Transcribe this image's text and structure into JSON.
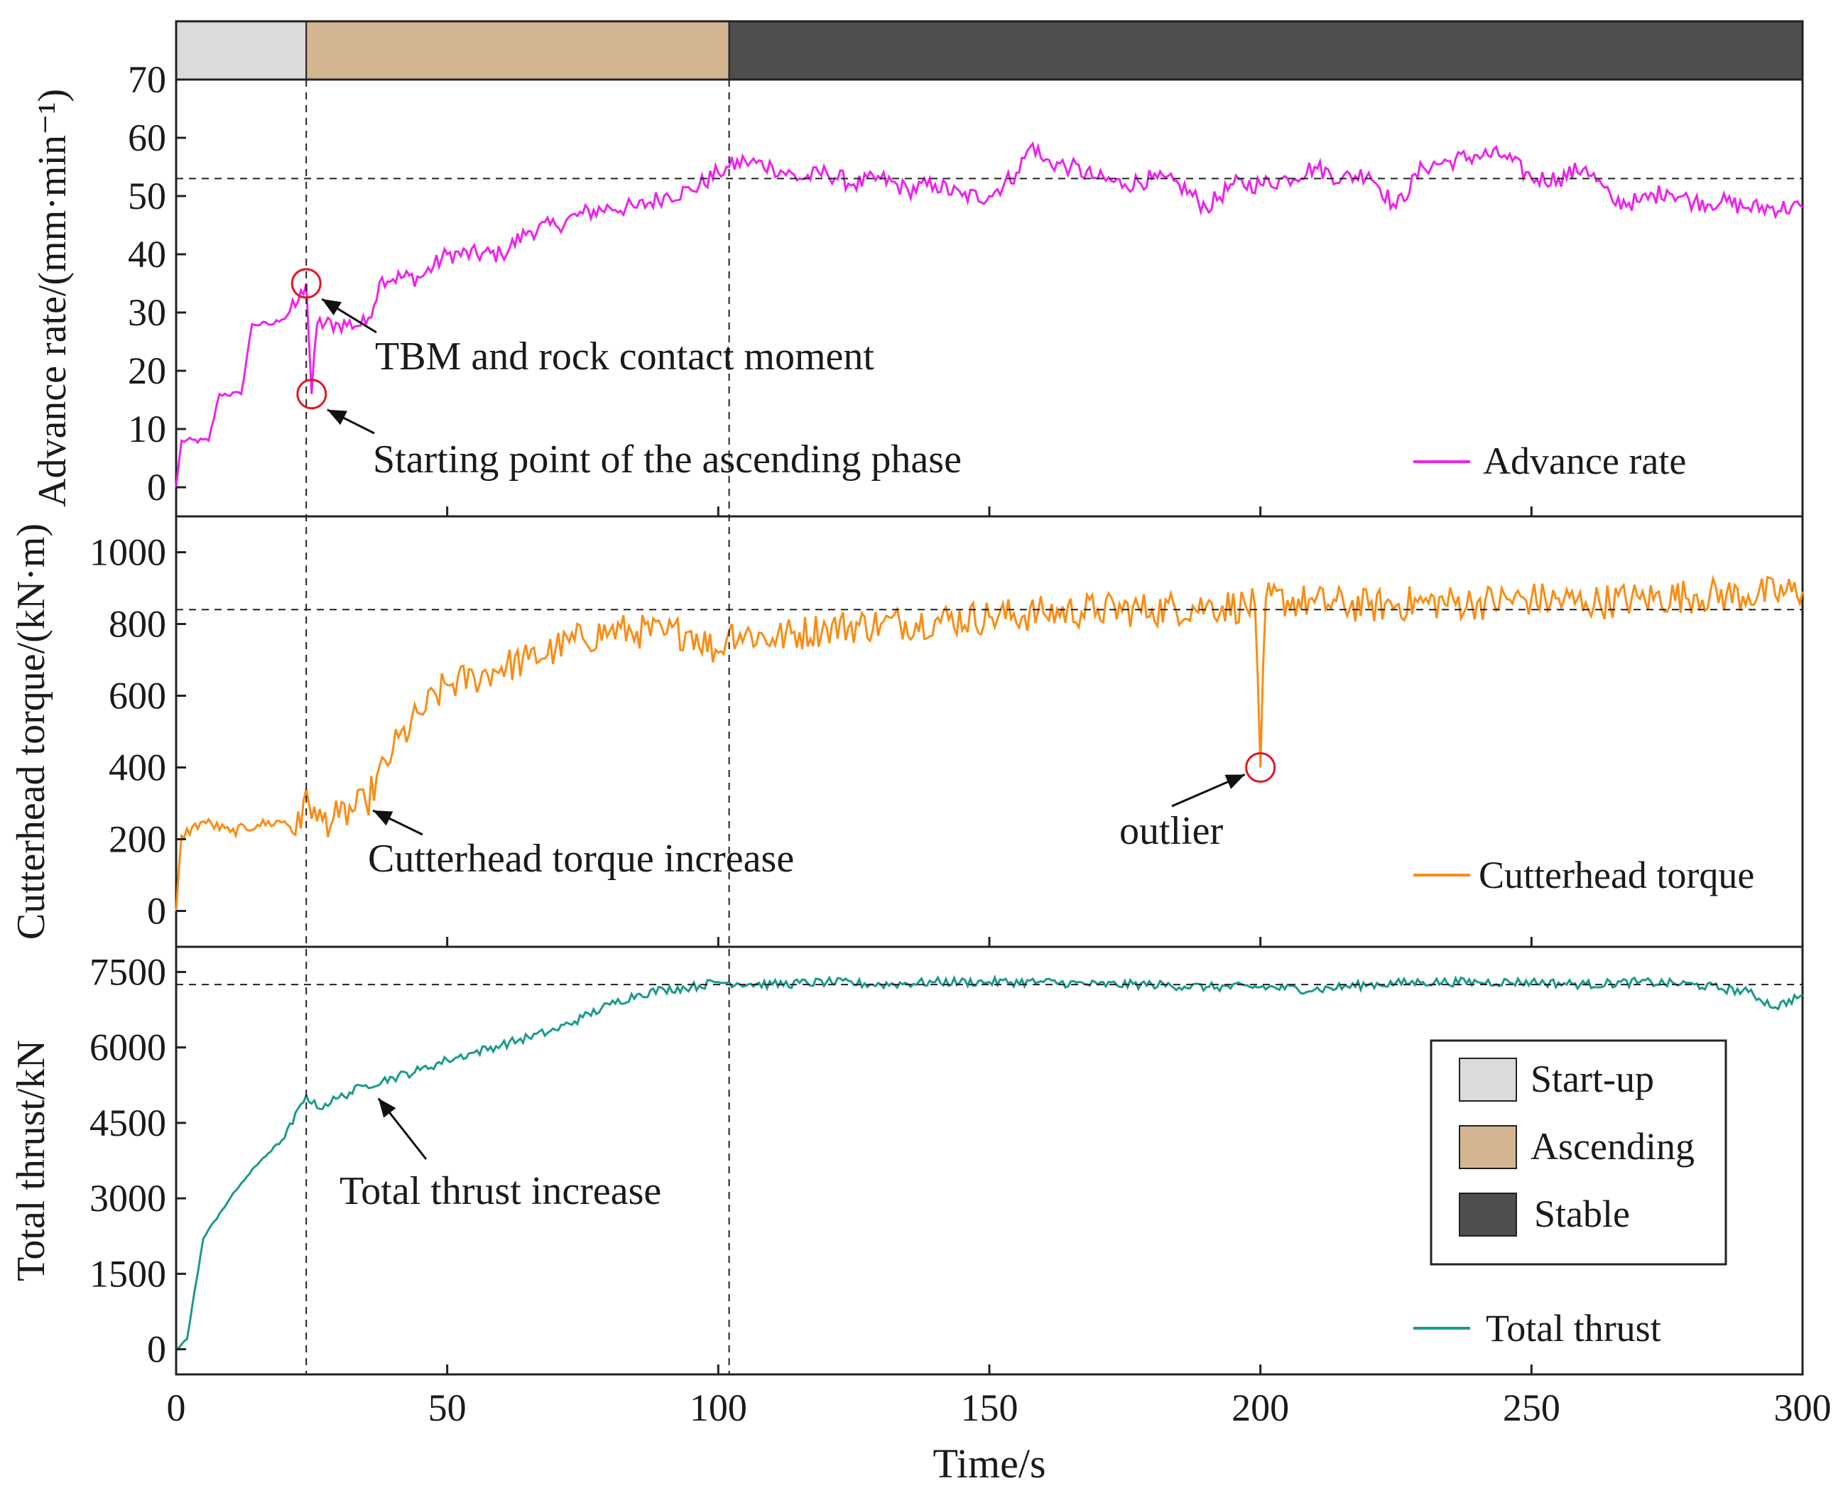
{
  "chart_data": {
    "type": "line",
    "xlabel": "Time/s",
    "xlim": [
      0,
      300
    ],
    "xticks": [
      "0",
      "50",
      "100",
      "150",
      "200",
      "250",
      "300"
    ],
    "phases": [
      {
        "name": "Start-up",
        "start": 0,
        "end": 24,
        "color": "#dcdadb"
      },
      {
        "name": "Ascending",
        "start": 24,
        "end": 102,
        "color": "#d4b592"
      },
      {
        "name": "Stable",
        "start": 102,
        "end": 300,
        "color": "#4e4e4e"
      }
    ],
    "phase_boundaries": [
      24,
      102
    ],
    "legend_phase": [
      "Start-up",
      "Ascending",
      "Stable"
    ],
    "panels": [
      {
        "id": "advance",
        "ylabel": "Advance rate/(mm·min⁻¹)",
        "ylim": [
          -5,
          70
        ],
        "yticks": [
          "0",
          "10",
          "20",
          "30",
          "40",
          "50",
          "60",
          "70"
        ],
        "series_name": "Advance rate",
        "color": "#ee22ee",
        "stable_mean": 53,
        "annotations": [
          {
            "text": "TBM and rock contact moment",
            "target": [
              24,
              35
            ]
          },
          {
            "text": "Starting point of the ascending phase",
            "target": [
              25,
              16
            ]
          }
        ],
        "keypoints": [
          [
            0,
            0
          ],
          [
            1,
            8
          ],
          [
            6,
            8
          ],
          [
            8,
            16
          ],
          [
            12,
            16
          ],
          [
            14,
            28
          ],
          [
            18,
            28
          ],
          [
            22,
            31
          ],
          [
            24,
            35
          ],
          [
            25,
            16
          ],
          [
            26,
            28
          ],
          [
            30,
            28
          ],
          [
            35,
            28
          ],
          [
            38,
            36
          ],
          [
            45,
            36
          ],
          [
            50,
            40
          ],
          [
            60,
            40
          ],
          [
            65,
            44
          ],
          [
            70,
            45
          ],
          [
            75,
            47
          ],
          [
            80,
            48
          ],
          [
            85,
            48
          ],
          [
            90,
            50
          ],
          [
            95,
            51
          ],
          [
            100,
            54
          ],
          [
            102,
            55
          ],
          [
            105,
            56
          ],
          [
            110,
            55
          ],
          [
            115,
            53
          ],
          [
            120,
            54
          ],
          [
            125,
            52
          ],
          [
            130,
            53
          ],
          [
            135,
            51
          ],
          [
            140,
            52
          ],
          [
            145,
            50
          ],
          [
            150,
            50
          ],
          [
            155,
            54
          ],
          [
            158,
            59
          ],
          [
            160,
            56
          ],
          [
            165,
            55
          ],
          [
            170,
            53
          ],
          [
            175,
            52
          ],
          [
            180,
            53
          ],
          [
            185,
            52
          ],
          [
            190,
            48
          ],
          [
            195,
            52
          ],
          [
            200,
            52
          ],
          [
            205,
            53
          ],
          [
            210,
            55
          ],
          [
            215,
            53
          ],
          [
            220,
            54
          ],
          [
            225,
            48
          ],
          [
            230,
            55
          ],
          [
            235,
            56
          ],
          [
            240,
            57
          ],
          [
            245,
            57
          ],
          [
            250,
            53
          ],
          [
            255,
            53
          ],
          [
            260,
            55
          ],
          [
            265,
            49
          ],
          [
            270,
            49
          ],
          [
            275,
            51
          ],
          [
            280,
            49
          ],
          [
            285,
            49
          ],
          [
            290,
            48
          ],
          [
            300,
            48
          ]
        ],
        "noise": 1.6
      },
      {
        "id": "torque",
        "ylabel": "Cutterhead torque/(kN·m)",
        "ylim": [
          -100,
          1100
        ],
        "yticks": [
          "0",
          "200",
          "400",
          "600",
          "800",
          "1000"
        ],
        "series_name": "Cutterhead torque",
        "color": "#fb8c14",
        "stable_mean": 840,
        "annotations": [
          {
            "text": "Cutterhead torque increase",
            "target": [
              35,
              300
            ]
          },
          {
            "text": "outlier",
            "target": [
              200,
              400
            ]
          }
        ],
        "keypoints": [
          [
            0,
            0
          ],
          [
            1,
            210
          ],
          [
            5,
            250
          ],
          [
            10,
            220
          ],
          [
            15,
            240
          ],
          [
            20,
            250
          ],
          [
            23,
            230
          ],
          [
            24,
            340
          ],
          [
            26,
            250
          ],
          [
            30,
            260
          ],
          [
            35,
            300
          ],
          [
            40,
            450
          ],
          [
            45,
            550
          ],
          [
            50,
            630
          ],
          [
            55,
            650
          ],
          [
            60,
            680
          ],
          [
            65,
            700
          ],
          [
            70,
            730
          ],
          [
            75,
            760
          ],
          [
            80,
            780
          ],
          [
            85,
            780
          ],
          [
            90,
            770
          ],
          [
            95,
            780
          ],
          [
            100,
            720
          ],
          [
            102,
            780
          ],
          [
            110,
            760
          ],
          [
            120,
            790
          ],
          [
            130,
            800
          ],
          [
            140,
            810
          ],
          [
            150,
            820
          ],
          [
            160,
            830
          ],
          [
            170,
            840
          ],
          [
            180,
            840
          ],
          [
            190,
            850
          ],
          [
            199,
            850
          ],
          [
            200,
            400
          ],
          [
            201,
            870
          ],
          [
            210,
            860
          ],
          [
            220,
            850
          ],
          [
            230,
            860
          ],
          [
            240,
            860
          ],
          [
            250,
            870
          ],
          [
            260,
            860
          ],
          [
            270,
            870
          ],
          [
            280,
            880
          ],
          [
            290,
            880
          ],
          [
            300,
            890
          ]
        ],
        "noise": 50
      },
      {
        "id": "thrust",
        "ylabel": "Total thrust/kN",
        "ylim": [
          -500,
          8000
        ],
        "yticks": [
          "0",
          "1500",
          "3000",
          "4500",
          "6000",
          "7500"
        ],
        "series_name": "Total thrust",
        "color": "#1b9a8c",
        "stable_mean": 7250,
        "annotations": [
          {
            "text": "Total thrust increase",
            "target": [
              36,
              5100
            ]
          }
        ],
        "keypoints": [
          [
            0,
            0
          ],
          [
            2,
            200
          ],
          [
            5,
            2200
          ],
          [
            8,
            2700
          ],
          [
            12,
            3300
          ],
          [
            16,
            3800
          ],
          [
            20,
            4200
          ],
          [
            24,
            5050
          ],
          [
            26,
            4800
          ],
          [
            30,
            5000
          ],
          [
            35,
            5250
          ],
          [
            40,
            5400
          ],
          [
            45,
            5550
          ],
          [
            50,
            5750
          ],
          [
            55,
            5900
          ],
          [
            60,
            6050
          ],
          [
            65,
            6200
          ],
          [
            70,
            6350
          ],
          [
            75,
            6600
          ],
          [
            80,
            6850
          ],
          [
            85,
            7050
          ],
          [
            90,
            7150
          ],
          [
            95,
            7200
          ],
          [
            100,
            7300
          ],
          [
            110,
            7250
          ],
          [
            120,
            7300
          ],
          [
            130,
            7250
          ],
          [
            140,
            7300
          ],
          [
            150,
            7300
          ],
          [
            160,
            7300
          ],
          [
            170,
            7250
          ],
          [
            180,
            7250
          ],
          [
            190,
            7200
          ],
          [
            200,
            7200
          ],
          [
            210,
            7150
          ],
          [
            220,
            7250
          ],
          [
            230,
            7300
          ],
          [
            240,
            7300
          ],
          [
            250,
            7300
          ],
          [
            260,
            7250
          ],
          [
            270,
            7300
          ],
          [
            280,
            7250
          ],
          [
            290,
            7100
          ],
          [
            295,
            6800
          ],
          [
            300,
            7050
          ]
        ],
        "noise": 90
      }
    ]
  }
}
